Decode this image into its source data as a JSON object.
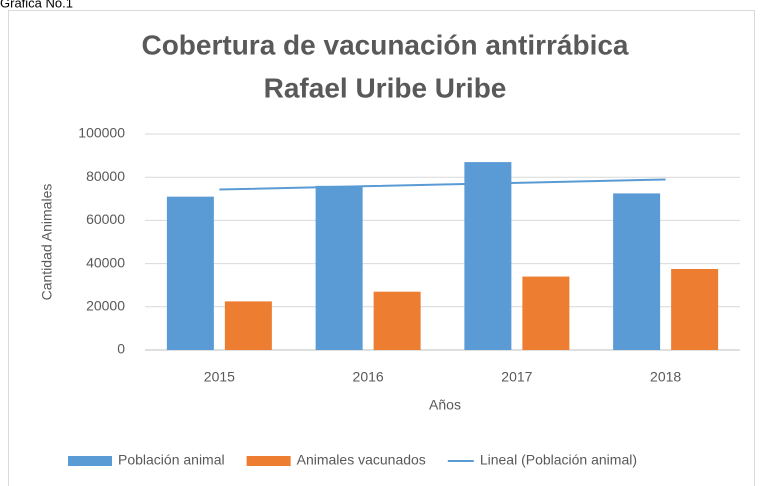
{
  "caption": "Gráfica No.1",
  "chart_data": {
    "type": "bar",
    "title": [
      "Cobertura de vacunación antirrábica",
      "Rafael Uribe Uribe"
    ],
    "x_label": "Años",
    "y_label": "Cantidad Animales",
    "categories": [
      "2015",
      "2016",
      "2017",
      "2018"
    ],
    "series": [
      {
        "name": "Población animal",
        "color": "#5b9bd5",
        "values": [
          71000,
          76000,
          87000,
          72500
        ]
      },
      {
        "name": "Animales vacunados",
        "color": "#ed7d31",
        "values": [
          22500,
          27000,
          34000,
          37500
        ]
      },
      {
        "name": "Lineal (Población animal)",
        "type": "line",
        "color": "#5b9bd5",
        "values": [
          74300,
          75850,
          77400,
          78950
        ]
      }
    ],
    "ylim": [
      0,
      100000
    ],
    "yticks": [
      0,
      20000,
      40000,
      60000,
      80000,
      100000
    ],
    "grid": true,
    "legend": "bottom"
  }
}
